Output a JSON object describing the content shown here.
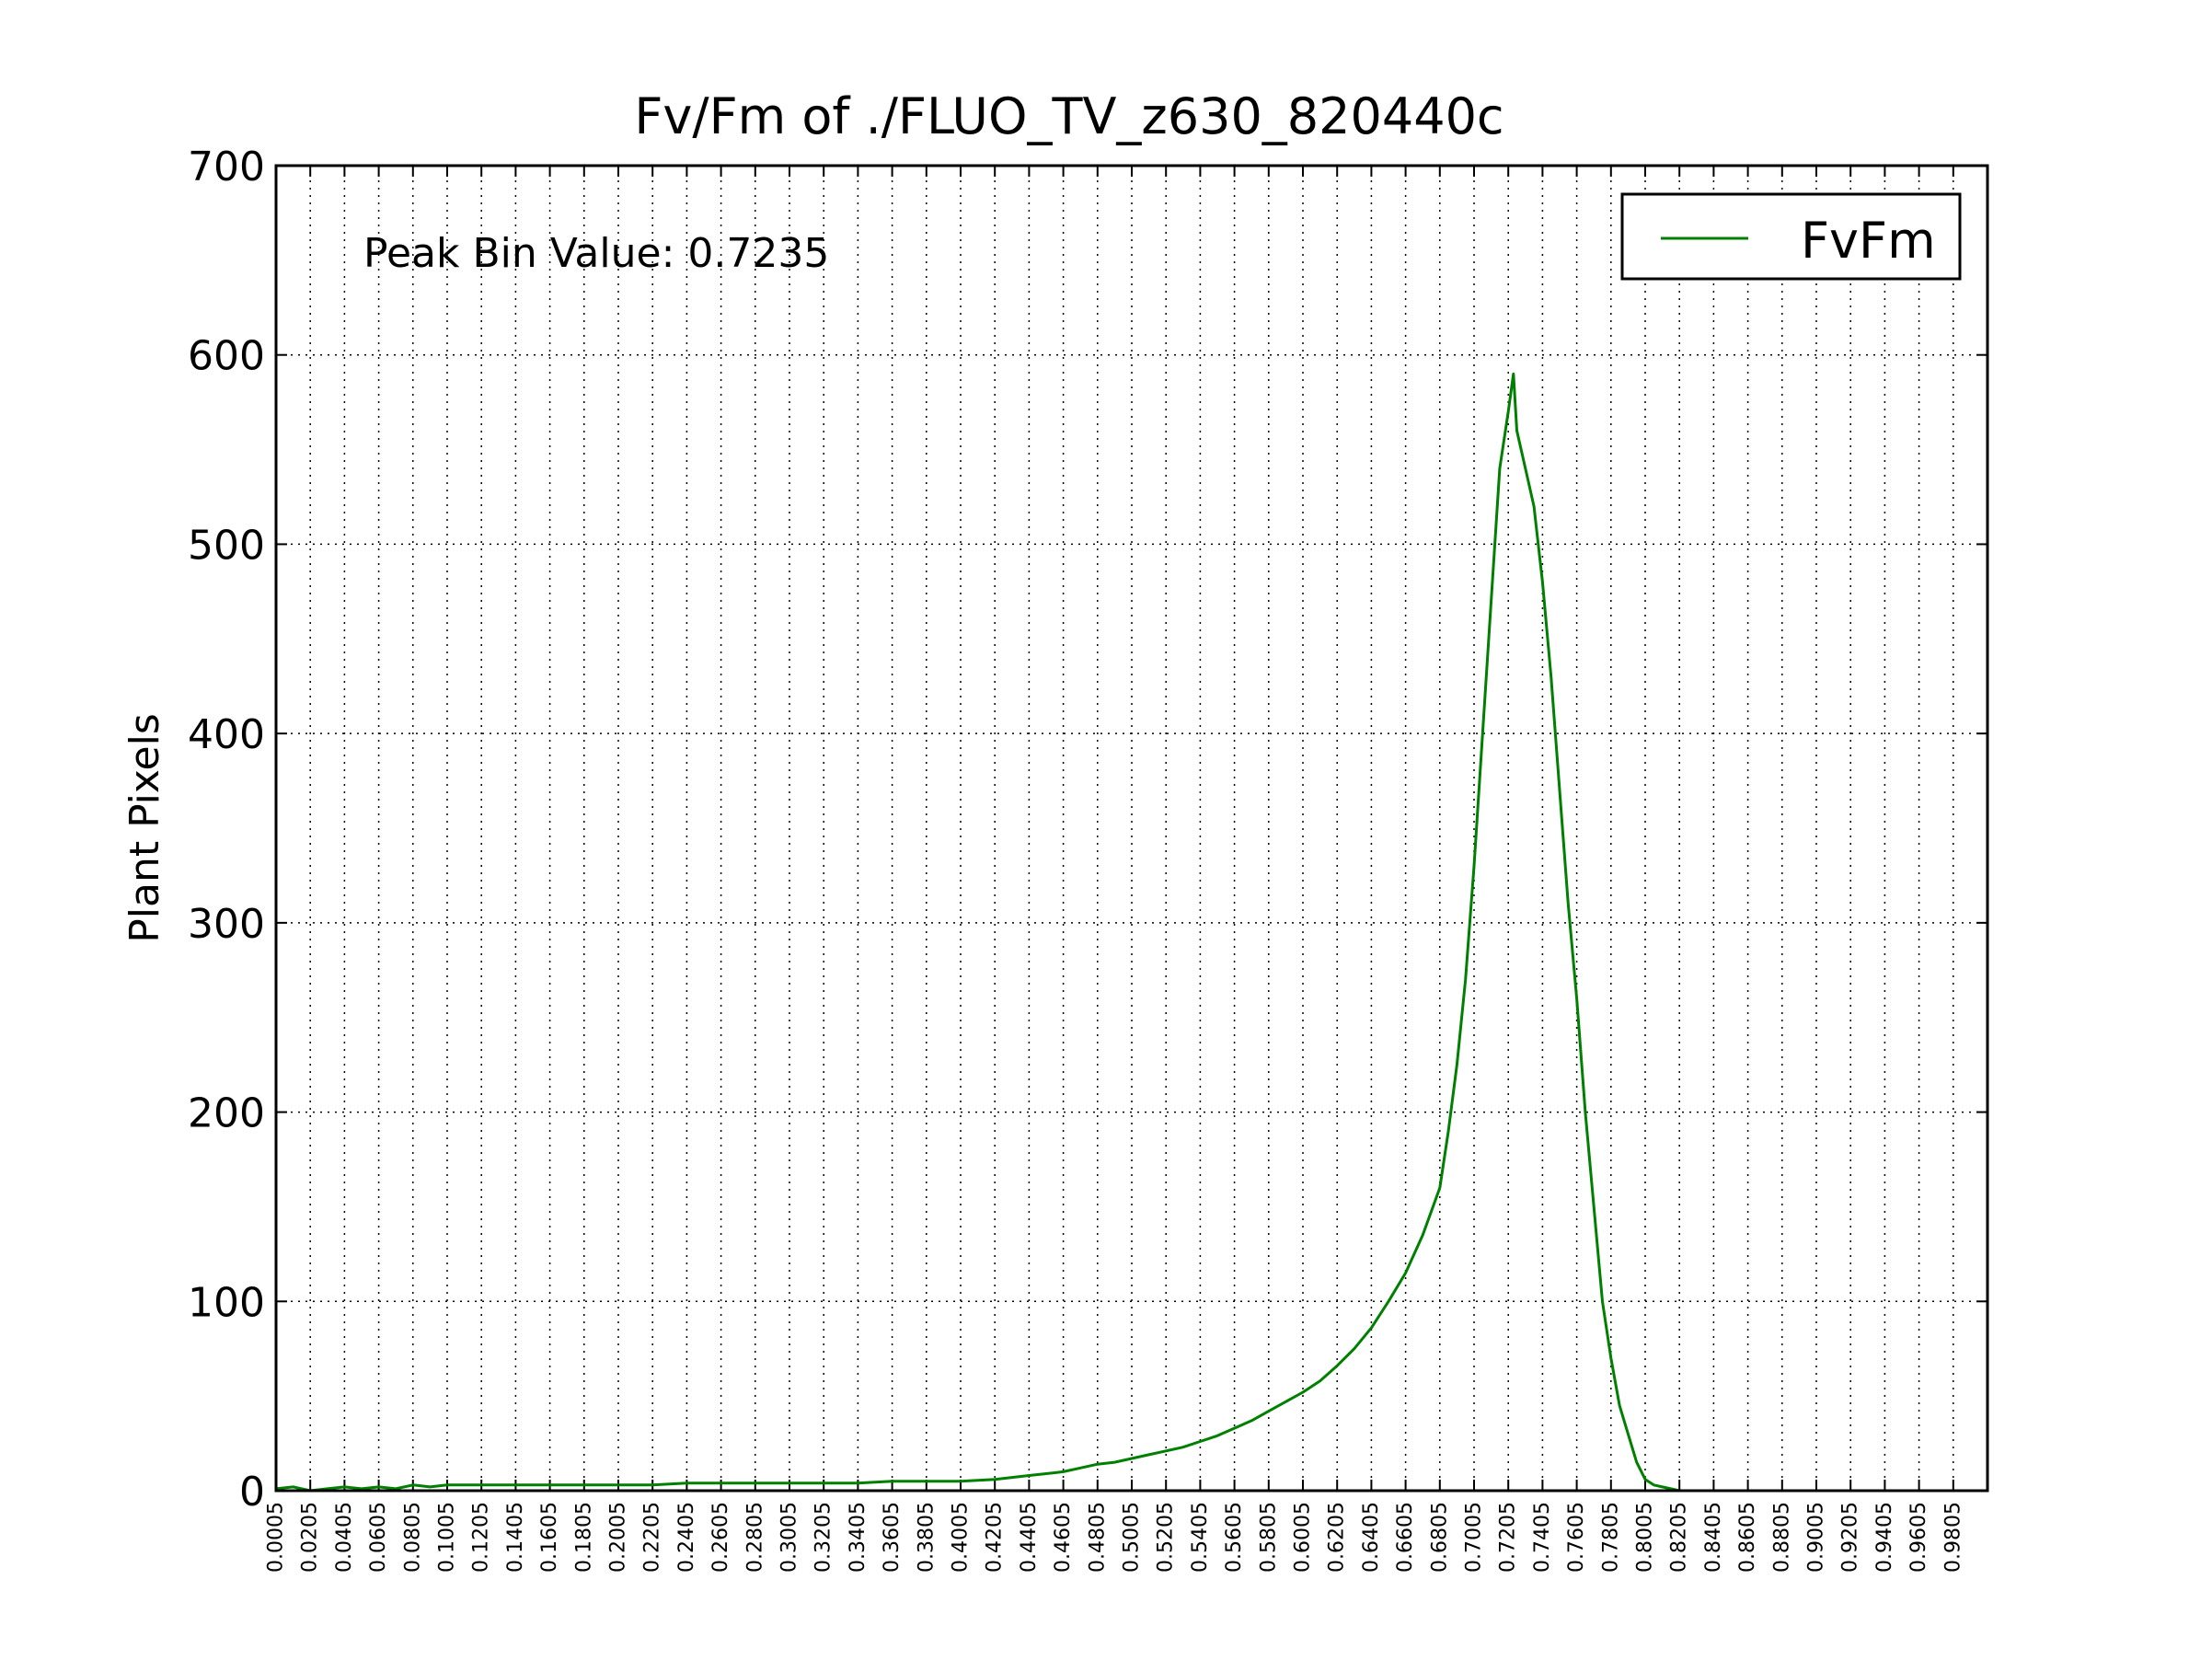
{
  "chart_data": {
    "type": "line",
    "title": "Fv/Fm of ./FLUO_TV_z630_820440c",
    "xlabel": "",
    "ylabel": "Plant Pixels",
    "xlim": [
      0.0005,
      1.0005
    ],
    "ylim": [
      0,
      700
    ],
    "yticks": [
      0,
      100,
      200,
      300,
      400,
      500,
      600,
      700
    ],
    "xtick_labels": [
      "0.0005",
      "0.0205",
      "0.0405",
      "0.0605",
      "0.0805",
      "0.1005",
      "0.1205",
      "0.1405",
      "0.1605",
      "0.1805",
      "0.2005",
      "0.2205",
      "0.2405",
      "0.2605",
      "0.2805",
      "0.3005",
      "0.3205",
      "0.3405",
      "0.3605",
      "0.3805",
      "0.4005",
      "0.4205",
      "0.4405",
      "0.4605",
      "0.4805",
      "0.5005",
      "0.5205",
      "0.5405",
      "0.5605",
      "0.5805",
      "0.6005",
      "0.6205",
      "0.6405",
      "0.6605",
      "0.6805",
      "0.7005",
      "0.7205",
      "0.7405",
      "0.7605",
      "0.7805",
      "0.8005",
      "0.8205",
      "0.8405",
      "0.8605",
      "0.8805",
      "0.9005",
      "0.9205",
      "0.9405",
      "0.9605",
      "0.9805"
    ],
    "grid": true,
    "legend_position": "top-right",
    "annotation": "Peak Bin Value: 0.7235",
    "series": [
      {
        "name": "FvFm",
        "color": "#008000",
        "x": [
          0.0005,
          0.0105,
          0.0205,
          0.0305,
          0.0405,
          0.0505,
          0.0605,
          0.0705,
          0.0805,
          0.0905,
          0.1005,
          0.1205,
          0.1405,
          0.1605,
          0.1805,
          0.2005,
          0.2205,
          0.2405,
          0.2605,
          0.2805,
          0.3005,
          0.3205,
          0.3405,
          0.3605,
          0.3805,
          0.4005,
          0.4205,
          0.4305,
          0.4405,
          0.4505,
          0.4605,
          0.4705,
          0.4805,
          0.4905,
          0.5005,
          0.5105,
          0.5205,
          0.5305,
          0.5405,
          0.5505,
          0.5605,
          0.5705,
          0.5805,
          0.5905,
          0.6005,
          0.6105,
          0.6205,
          0.6305,
          0.6405,
          0.6505,
          0.6605,
          0.6705,
          0.6805,
          0.6855,
          0.6905,
          0.6955,
          0.7005,
          0.7055,
          0.7105,
          0.7155,
          0.7205,
          0.7235,
          0.7255,
          0.7305,
          0.7355,
          0.7405,
          0.7455,
          0.7505,
          0.7555,
          0.7605,
          0.7655,
          0.7705,
          0.7755,
          0.7805,
          0.7855,
          0.7905,
          0.7955,
          0.8005,
          0.8055,
          0.8105,
          0.8155,
          0.8205
        ],
        "y": [
          1,
          2,
          0,
          1,
          2,
          1,
          2,
          1,
          3,
          2,
          3,
          3,
          3,
          3,
          3,
          3,
          3,
          4,
          4,
          4,
          4,
          4,
          4,
          5,
          5,
          5,
          6,
          7,
          8,
          9,
          10,
          12,
          14,
          15,
          17,
          19,
          21,
          23,
          26,
          29,
          33,
          37,
          42,
          47,
          52,
          58,
          66,
          75,
          86,
          100,
          115,
          135,
          160,
          190,
          225,
          270,
          330,
          400,
          470,
          540,
          570,
          590,
          560,
          540,
          520,
          480,
          430,
          370,
          310,
          260,
          200,
          150,
          100,
          70,
          45,
          30,
          15,
          6,
          3,
          2,
          1,
          0
        ]
      }
    ]
  }
}
